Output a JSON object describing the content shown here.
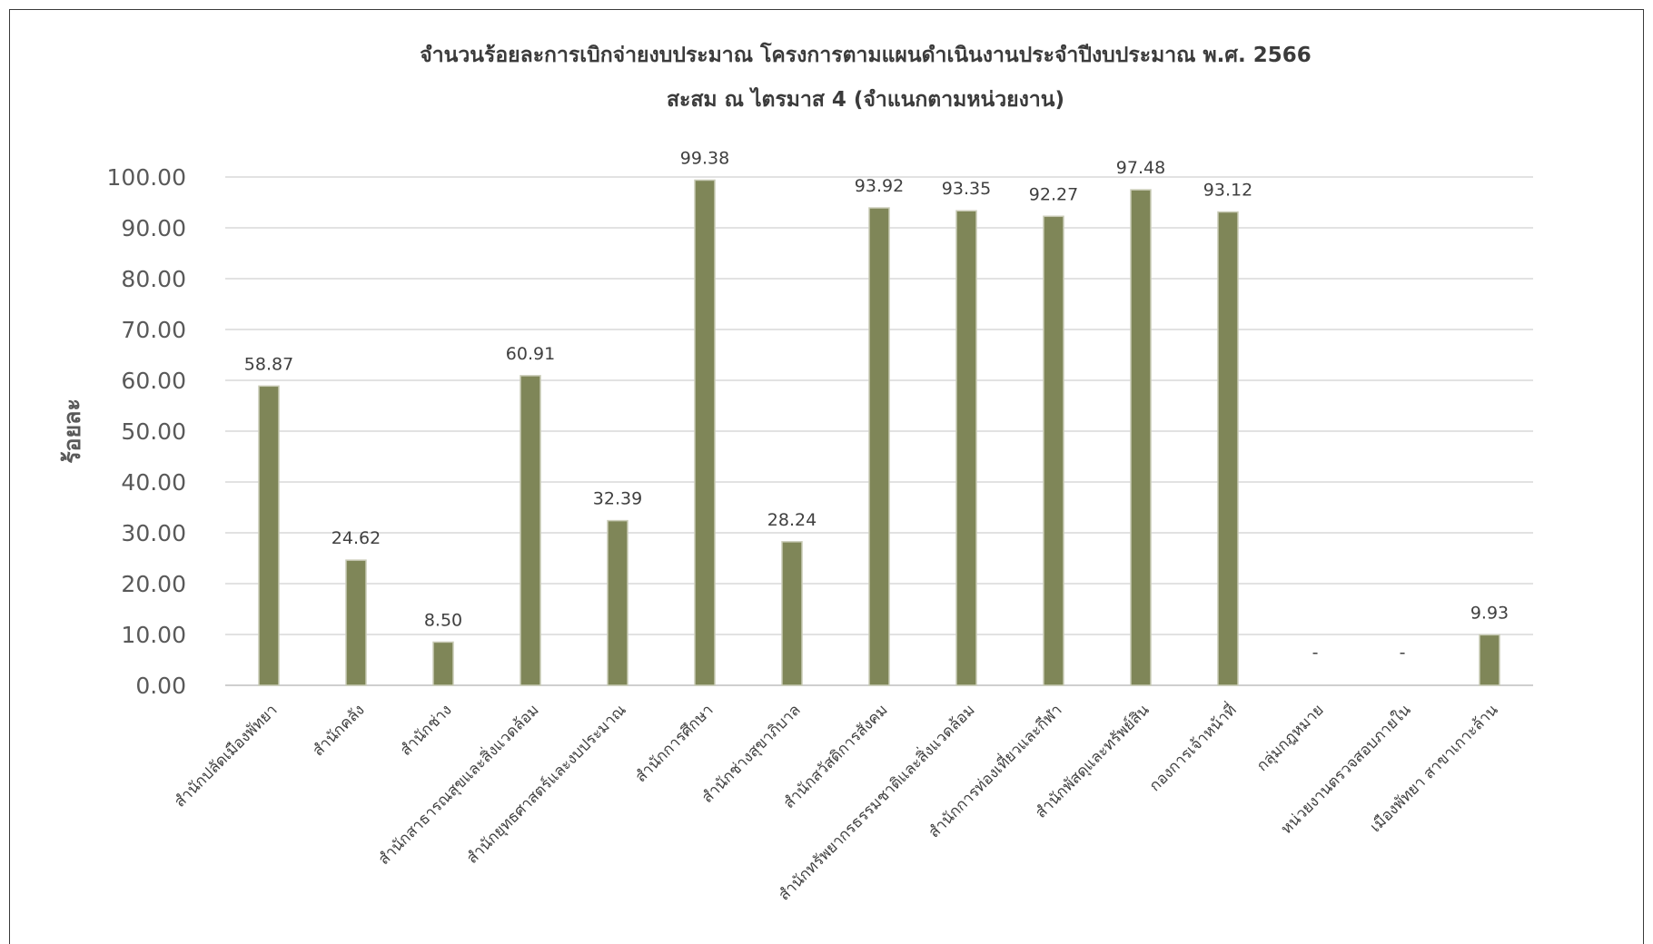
{
  "chart_data": {
    "type": "bar",
    "title": "จำนวนร้อยละการเบิกจ่ายงบประมาณ โครงการตามแผนดำเนินงานประจำปีงบประมาณ พ.ศ. 2566",
    "subtitle": "สะสม ณ ไตรมาส 4 (จำแนกตามหน่วยงาน)",
    "ylabel": "ร้อยละ",
    "xlabel": "",
    "ylim": [
      0,
      100
    ],
    "yticks": [
      "0.00",
      "10.00",
      "20.00",
      "30.00",
      "40.00",
      "50.00",
      "60.00",
      "70.00",
      "80.00",
      "90.00",
      "100.00"
    ],
    "grid": true,
    "bar_color": "#7f8658",
    "categories": [
      "สำนักปลัดเมืองพัทยา",
      "สำนักคลัง",
      "สำนักช่าง",
      "สำนักสาธารณสุขและสิ่งแวดล้อม",
      "สำนักยุทธศาสตร์และงบประมาณ",
      "สำนักการศึกษา",
      "สำนักช่างสุขาภิบาล",
      "สำนักสวัสดิการสังคม",
      "สำนักทรัพยากรธรรมชาติและสิ่งแวดล้อม",
      "สำนักการท่องเที่ยวและกีฬา",
      "สำนักพัสดุและทรัพย์สิน",
      "กองการเจ้าหน้าที่",
      "กลุ่มกฎหมาย",
      "หน่วยงานตรวจสอบภายใน",
      "เมืองพัทยา สาขาเกาะล้าน"
    ],
    "values": [
      58.87,
      24.62,
      8.5,
      60.91,
      32.39,
      99.38,
      28.24,
      93.92,
      93.35,
      92.27,
      97.48,
      93.12,
      null,
      null,
      9.93
    ],
    "data_labels": [
      "58.87",
      "24.62",
      "8.50",
      "60.91",
      "32.39",
      "99.38",
      "28.24",
      "93.92",
      "93.35",
      "92.27",
      "97.48",
      "93.12",
      "-",
      "-",
      "9.93"
    ]
  }
}
